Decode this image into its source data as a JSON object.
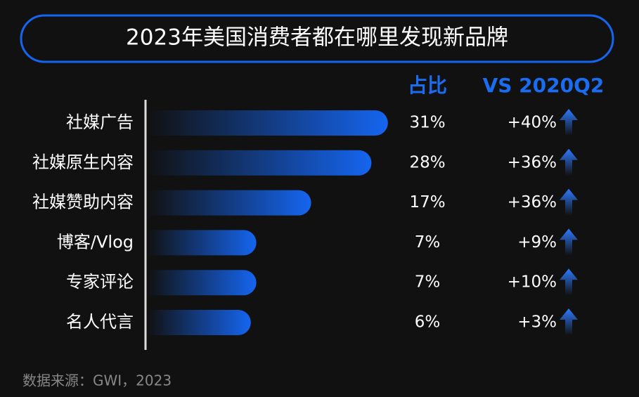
{
  "chart_data": {
    "type": "bar",
    "title": "2023年美国消费者都在哪里发现新品牌",
    "categories": [
      "社媒广告",
      "社媒原生内容",
      "社媒赞助内容",
      "博客/Vlog",
      "专家评论",
      "名人代言"
    ],
    "series": [
      {
        "name": "占比",
        "color": "#1565f0",
        "values": [
          31,
          28,
          17,
          7,
          7,
          6
        ],
        "value_labels": [
          "31%",
          "28%",
          "17%",
          "7%",
          "7%",
          "6%"
        ]
      },
      {
        "name": "VS 2020Q2",
        "color": "#1565f0",
        "values": [
          40,
          36,
          36,
          9,
          10,
          3
        ],
        "value_labels": [
          "+40%",
          "+36%",
          "+36%",
          "+9%",
          "+10%",
          "+3%"
        ]
      }
    ],
    "source": "数据来源：GWI，2023"
  }
}
